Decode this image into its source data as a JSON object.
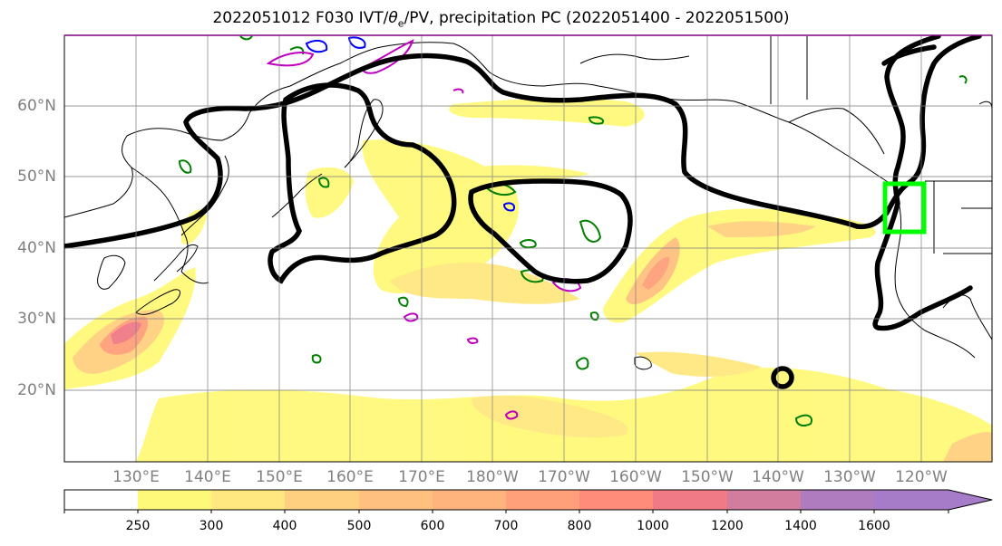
{
  "title": {
    "prefix": "2022051012 F030 IVT/",
    "theta": "θ",
    "sub": "e",
    "suffix": "/PV, precipitation PC (2022051400 - 2022051500)"
  },
  "map": {
    "projection": "equirectangular",
    "lon_range_east": [
      120,
      250
    ],
    "lat_range": [
      10,
      70
    ],
    "grid": true,
    "lat_labels": [
      "20°N",
      "30°N",
      "40°N",
      "50°N",
      "60°N"
    ],
    "lon_labels": [
      "130°E",
      "140°E",
      "150°E",
      "160°E",
      "170°E",
      "180°W",
      "170°W",
      "160°W",
      "150°W",
      "140°W",
      "130°W",
      "120°W"
    ],
    "target_box": {
      "lon_min": 233,
      "lon_max": 239,
      "lat_min": 42,
      "lat_max": 49,
      "color": "#00ff00"
    },
    "colors": {
      "pv_contour": "#000000",
      "theta_e_contour": "#008000",
      "ivt_contour_blue": "#0000ff",
      "ivt_contour_magenta": "#c000c0",
      "coastline": "#000000"
    }
  },
  "colorbar": {
    "levels": [
      "250",
      "300",
      "400",
      "500",
      "600",
      "700",
      "800",
      "1000",
      "1200",
      "1400",
      "1600"
    ],
    "colors": [
      "#ffffff",
      "#fff97a",
      "#ffe880",
      "#ffd080",
      "#ffc080",
      "#ffb47e",
      "#ffa07a",
      "#ff8c7a",
      "#f07a86",
      "#d27c9e",
      "#b07cc0",
      "#a67cc8"
    ]
  }
}
